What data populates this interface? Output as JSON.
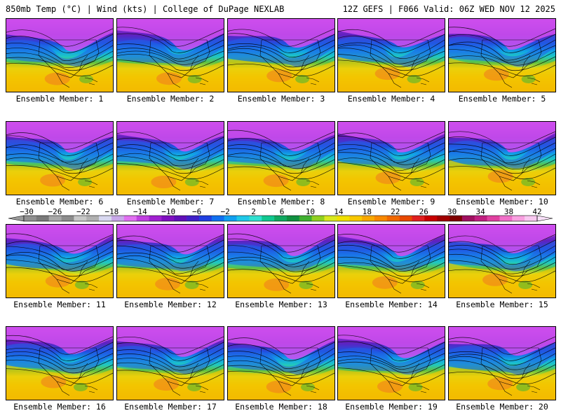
{
  "header": {
    "left": "850mb Temp (°C) | Wind (kts) | College of DuPage NEXLAB",
    "right": "12Z GEFS | F066 Valid: 06Z WED NOV 12 2025"
  },
  "members": [
    {
      "label": "Ensemble Member: 1"
    },
    {
      "label": "Ensemble Member: 2"
    },
    {
      "label": "Ensemble Member: 3"
    },
    {
      "label": "Ensemble Member: 4"
    },
    {
      "label": "Ensemble Member: 5"
    },
    {
      "label": "Ensemble Member: 6"
    },
    {
      "label": "Ensemble Member: 7"
    },
    {
      "label": "Ensemble Member: 8"
    },
    {
      "label": "Ensemble Member: 9"
    },
    {
      "label": "Ensemble Member: 10"
    },
    {
      "label": "Ensemble Member: 11"
    },
    {
      "label": "Ensemble Member: 12"
    },
    {
      "label": "Ensemble Member: 13"
    },
    {
      "label": "Ensemble Member: 14"
    },
    {
      "label": "Ensemble Member: 15"
    },
    {
      "label": "Ensemble Member: 16"
    },
    {
      "label": "Ensemble Member: 17"
    },
    {
      "label": "Ensemble Member: 18"
    },
    {
      "label": "Ensemble Member: 19"
    },
    {
      "label": "Ensemble Member: 20"
    }
  ],
  "colorbar": {
    "labels": [
      "-30",
      "-26",
      "-22",
      "-18",
      "-14",
      "-10",
      "-6",
      "-2",
      "2",
      "6",
      "10",
      "14",
      "18",
      "22",
      "26",
      "30",
      "34",
      "38",
      "42"
    ],
    "colors": [
      "#909090",
      "#7a7a7a",
      "#a8a8a8",
      "#8c8c8c",
      "#c8c8c8",
      "#b0b0b0",
      "#d8d8f0",
      "#c8a8e8",
      "#e070f0",
      "#c040e0",
      "#a020d0",
      "#8010c0",
      "#6010b8",
      "#4020c8",
      "#2040e0",
      "#1070f0",
      "#10a0f0",
      "#20c8e8",
      "#30e0d0",
      "#10c890",
      "#10a860",
      "#109040",
      "#40b030",
      "#90d020",
      "#d8e820",
      "#f0e000",
      "#f8c800",
      "#f8a800",
      "#f88800",
      "#f06800",
      "#e84800",
      "#e02020",
      "#c80000",
      "#a00000",
      "#800000",
      "#a01060",
      "#c02080",
      "#e040a0",
      "#f070c8",
      "#f8a0e0",
      "#f8c8f0"
    ]
  }
}
